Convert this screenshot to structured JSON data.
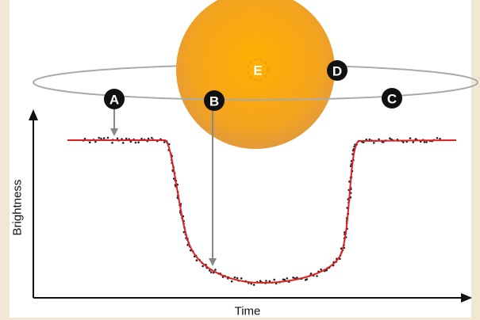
{
  "points": {
    "a": "A",
    "b": "B",
    "c": "C",
    "d": "D",
    "e": "E"
  },
  "axes": {
    "y_label": "Brightness",
    "x_label": "Time"
  }
}
